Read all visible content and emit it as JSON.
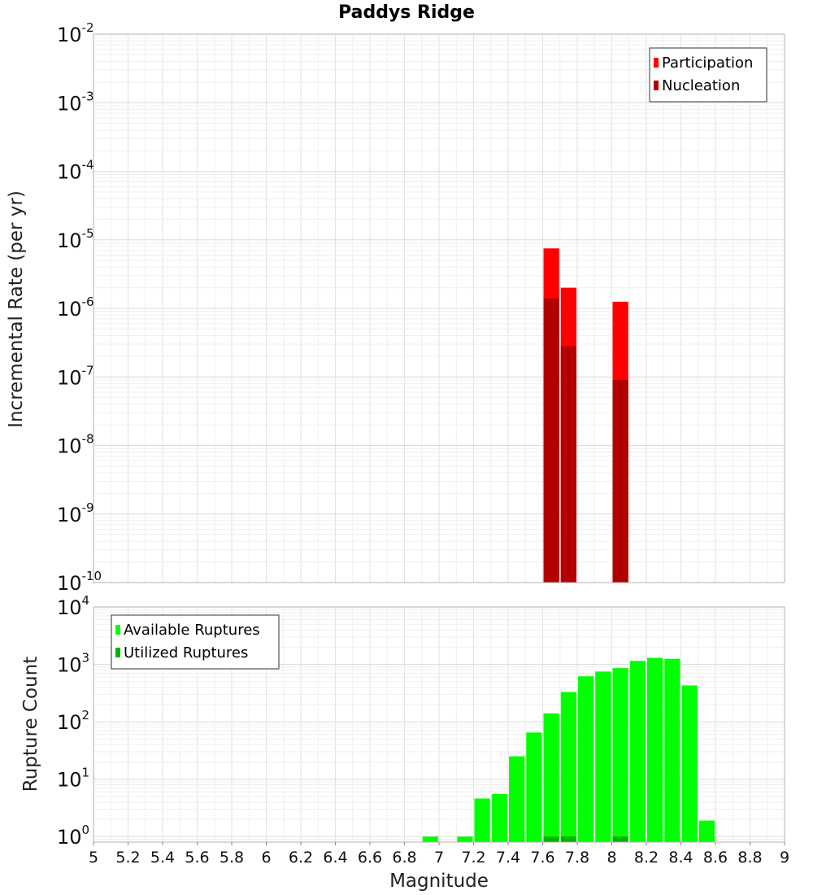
{
  "chart_data": [
    {
      "type": "bar",
      "title": "Paddys Ridge",
      "xlabel": "",
      "ylabel": "Incremental Rate (per yr)",
      "yscale": "log",
      "ylim": [
        1e-10,
        0.01
      ],
      "xlim": [
        5,
        9
      ],
      "y_tick_labels": [
        {
          "base": "10",
          "exp": "-2"
        },
        {
          "base": "10",
          "exp": "-3"
        },
        {
          "base": "10",
          "exp": "-4"
        },
        {
          "base": "10",
          "exp": "-5"
        },
        {
          "base": "10",
          "exp": "-6"
        },
        {
          "base": "10",
          "exp": "-7"
        },
        {
          "base": "10",
          "exp": "-8"
        },
        {
          "base": "10",
          "exp": "-9"
        },
        {
          "base": "10",
          "exp": "-10"
        }
      ],
      "legend": {
        "position": "top-right",
        "entries": [
          {
            "label": "Participation",
            "color": "#ff0000"
          },
          {
            "label": "Nucleation",
            "color": "#b20000"
          }
        ]
      },
      "series": [
        {
          "name": "Participation",
          "color": "#ff0000",
          "x": [
            7.65,
            7.75,
            8.05
          ],
          "values": [
            7.5e-06,
            2e-06,
            1.25e-06
          ]
        },
        {
          "name": "Nucleation",
          "color": "#b20000",
          "x": [
            7.65,
            7.75,
            8.05
          ],
          "values": [
            1.4e-06,
            2.8e-07,
            9e-08
          ]
        }
      ]
    },
    {
      "type": "bar",
      "title": "",
      "xlabel": "Magnitude",
      "ylabel": "Rupture Count",
      "yscale": "log",
      "ylim": [
        0.8,
        10000
      ],
      "xlim": [
        5,
        9
      ],
      "x_ticks": [
        "5",
        "5.2",
        "5.4",
        "5.6",
        "5.8",
        "6",
        "6.2",
        "6.4",
        "6.6",
        "6.8",
        "7",
        "7.2",
        "7.4",
        "7.6",
        "7.8",
        "8",
        "8.2",
        "8.4",
        "8.6",
        "8.8",
        "9"
      ],
      "y_tick_labels": [
        {
          "base": "10",
          "exp": "4"
        },
        {
          "base": "10",
          "exp": "3"
        },
        {
          "base": "10",
          "exp": "2"
        },
        {
          "base": "10",
          "exp": "1"
        },
        {
          "base": "10",
          "exp": "0"
        }
      ],
      "legend": {
        "position": "top-left",
        "entries": [
          {
            "label": "Available Ruptures",
            "color": "#00ff00"
          },
          {
            "label": "Utilized Ruptures",
            "color": "#00b200"
          }
        ]
      },
      "series": [
        {
          "name": "Available Ruptures",
          "color": "#00ff00",
          "x": [
            6.95,
            7.15,
            7.25,
            7.35,
            7.45,
            7.55,
            7.65,
            7.75,
            7.85,
            7.95,
            8.05,
            8.15,
            8.25,
            8.35,
            8.45,
            8.55
          ],
          "values": [
            1,
            1,
            4.6,
            5.5,
            25,
            65,
            140,
            330,
            620,
            750,
            860,
            1150,
            1300,
            1250,
            430,
            1.9
          ]
        },
        {
          "name": "Utilized Ruptures",
          "color": "#00b200",
          "x": [
            7.65,
            7.75,
            8.05
          ],
          "values": [
            1,
            1,
            1
          ]
        }
      ]
    }
  ]
}
